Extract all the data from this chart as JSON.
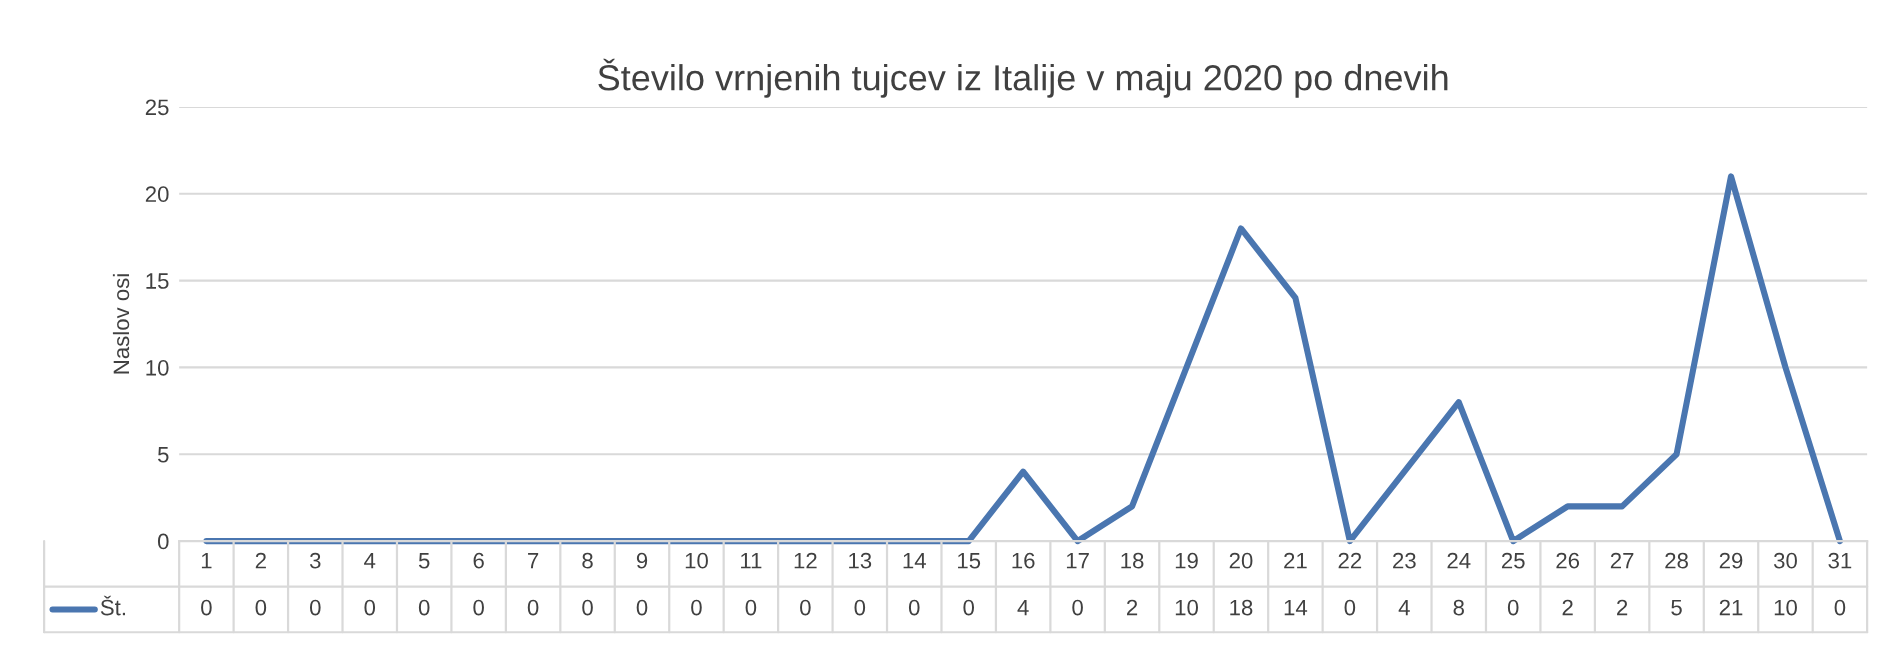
{
  "chart_data": {
    "type": "line",
    "title": "Število vrnjenih tujcev iz Italije v maju 2020 po dnevih",
    "ylabel": "Naslov osi",
    "categories": [
      "1",
      "2",
      "3",
      "4",
      "5",
      "6",
      "7",
      "8",
      "9",
      "10",
      "11",
      "12",
      "13",
      "14",
      "15",
      "16",
      "17",
      "18",
      "19",
      "20",
      "21",
      "22",
      "23",
      "24",
      "25",
      "26",
      "27",
      "28",
      "29",
      "30",
      "31"
    ],
    "series": [
      {
        "name": "Št.",
        "color": "#4a76b0",
        "values": [
          0,
          0,
          0,
          0,
          0,
          0,
          0,
          0,
          0,
          0,
          0,
          0,
          0,
          0,
          0,
          4,
          0,
          2,
          10,
          18,
          14,
          0,
          4,
          8,
          0,
          2,
          2,
          5,
          21,
          10,
          0
        ]
      }
    ],
    "ylim": [
      0,
      25
    ],
    "yticks": [
      0,
      5,
      10,
      15,
      20,
      25
    ],
    "grid": "y",
    "data_labels": true,
    "legend": "bottom",
    "marker": "none",
    "line_style": "solid"
  }
}
